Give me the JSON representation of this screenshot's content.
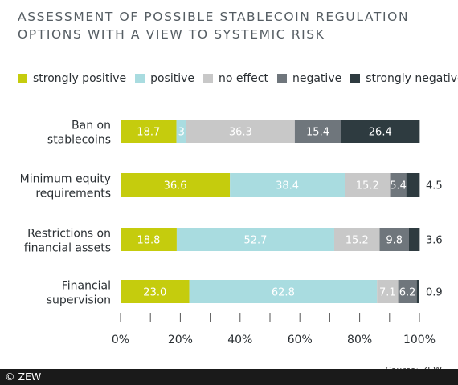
{
  "title": "ASSESSMENT OF POSSIBLE STABLECOIN REGULATION OPTIONS WITH A VIEW TO SYSTEMIC RISK",
  "source": "Source: ZEW",
  "copyright": "© ZEW",
  "colors": {
    "strongly_positive": "#c5cc0d",
    "positive": "#a9dce0",
    "no_effect": "#c8c8c8",
    "negative": "#6f767c",
    "strongly_negative": "#2e3b40"
  },
  "chart_data": {
    "type": "bar",
    "orientation": "horizontal",
    "stacked": true,
    "categories": [
      [
        "Ban on",
        "stablecoins"
      ],
      [
        "Minimum equity",
        "requirements"
      ],
      [
        "Restrictions on",
        "financial assets"
      ],
      [
        "Financial",
        "supervision"
      ]
    ],
    "series": [
      {
        "name": "strongly positive",
        "color": "#c5cc0d",
        "values": [
          18.7,
          36.6,
          18.8,
          23.0
        ]
      },
      {
        "name": "positive",
        "color": "#a9dce0",
        "values": [
          3.3,
          38.4,
          52.7,
          62.8
        ]
      },
      {
        "name": "no effect",
        "color": "#c8c8c8",
        "values": [
          36.3,
          15.2,
          15.2,
          7.1
        ]
      },
      {
        "name": "negative",
        "color": "#6f767c",
        "values": [
          15.4,
          5.4,
          9.8,
          6.2
        ]
      },
      {
        "name": "strongly negative",
        "color": "#2e3b40",
        "values": [
          26.4,
          4.5,
          3.6,
          0.9
        ]
      }
    ],
    "xlim": [
      0,
      100
    ],
    "xticks": [
      "0%",
      "20%",
      "40%",
      "60%",
      "80%",
      "100%"
    ],
    "legend_position": "top",
    "grid": false
  }
}
